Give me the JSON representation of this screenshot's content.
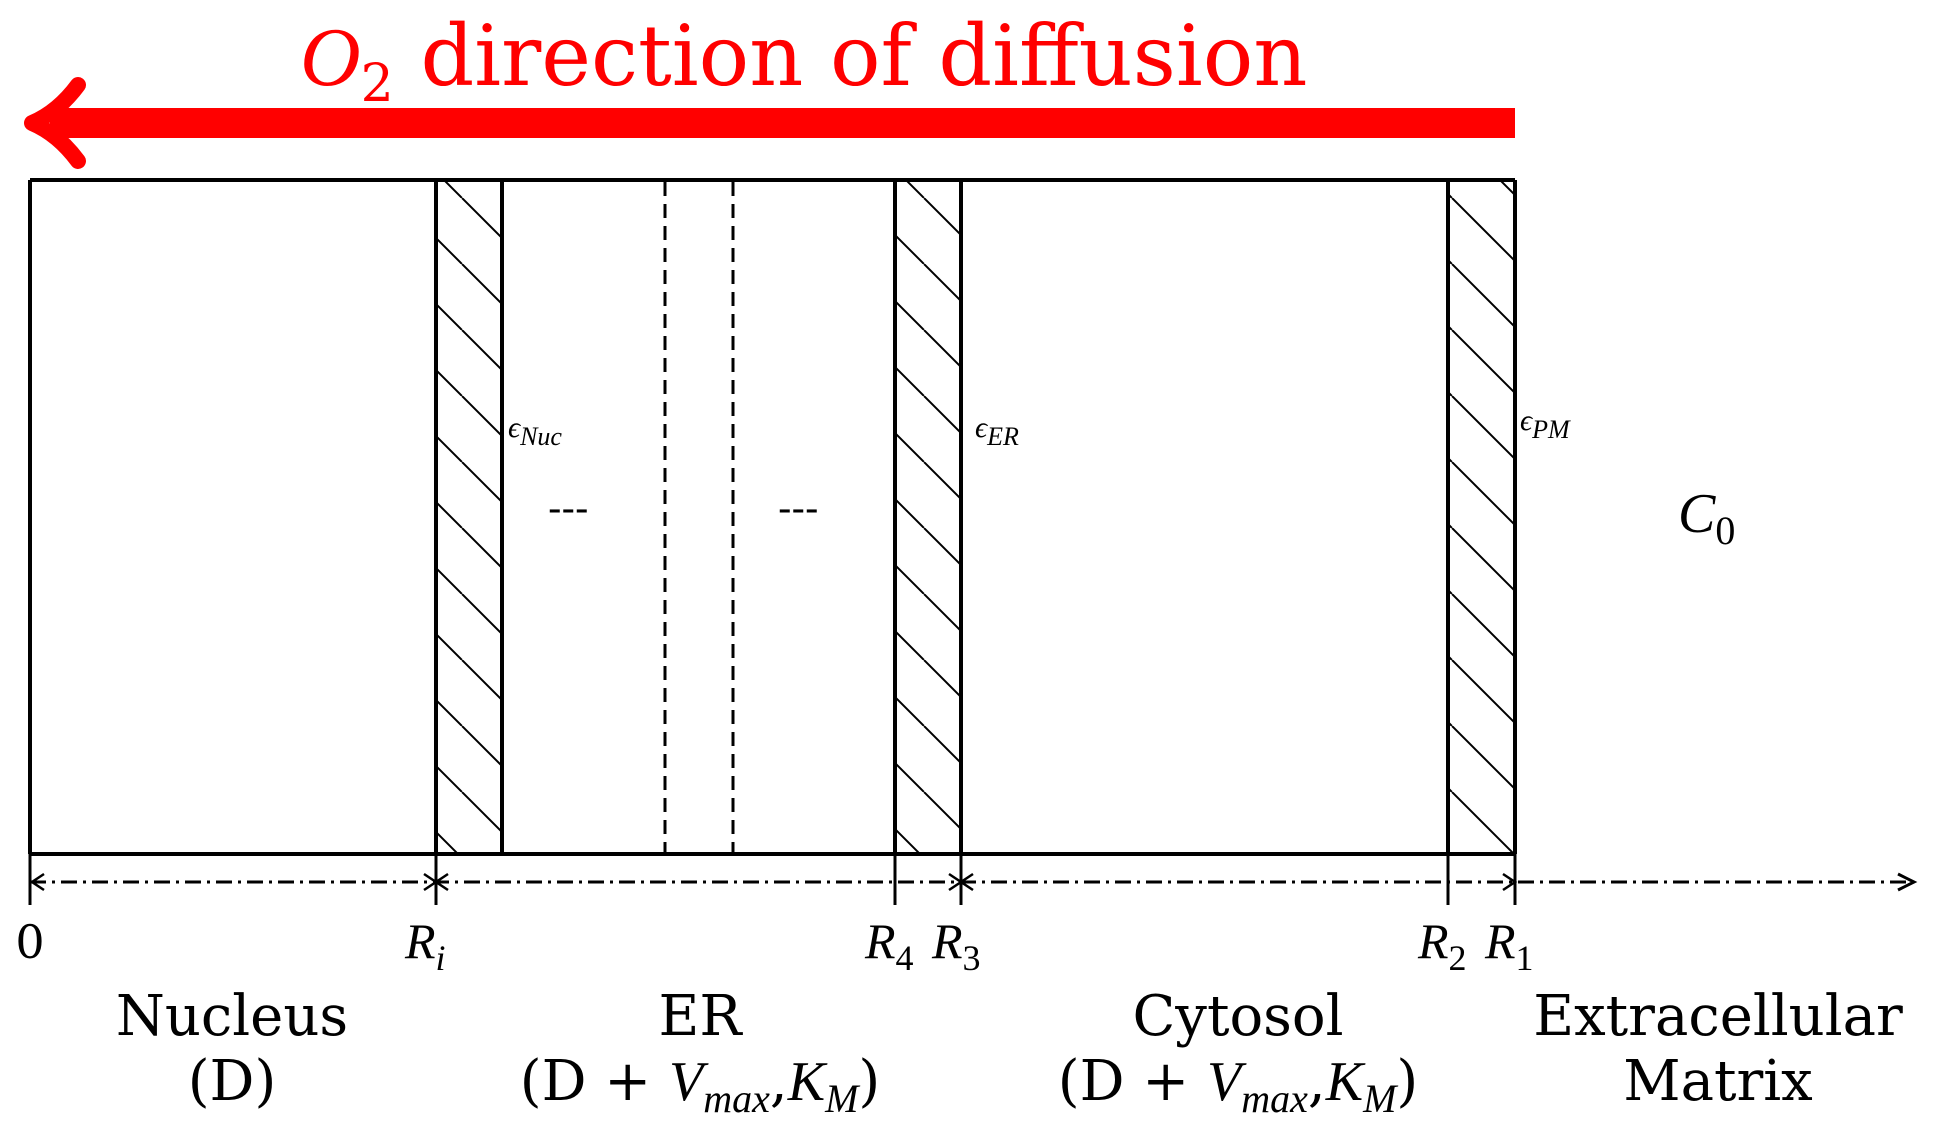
{
  "title": {
    "symbol": "O",
    "subscript": "2",
    "text": " direction of diffusion",
    "color": "#ff0000"
  },
  "membranes": [
    {
      "symbol": "ϵ",
      "sub": "Nuc"
    },
    {
      "symbol": "ϵ",
      "sub": "ER"
    },
    {
      "symbol": "ϵ",
      "sub": "PM"
    }
  ],
  "ellipsis": [
    "---",
    "---"
  ],
  "outer_concentration": {
    "symbol": "C",
    "sub": "0"
  },
  "axis_ticks": [
    {
      "main": "0",
      "sub": ""
    },
    {
      "main": "R",
      "sub": "i"
    },
    {
      "main": "R",
      "sub": "4"
    },
    {
      "main": "R",
      "sub": "3"
    },
    {
      "main": "R",
      "sub": "2"
    },
    {
      "main": "R",
      "sub": "1"
    }
  ],
  "regions": [
    {
      "name": "Nucleus",
      "detail": "(D)"
    },
    {
      "name": "ER",
      "detail_pre": "(D + ",
      "vmax": "V",
      "vmax_sub": "max",
      "comma": ",",
      "km": "K",
      "km_sub": "M",
      "detail_post": ")"
    },
    {
      "name": "Cytosol",
      "detail_pre": "(D + ",
      "vmax": "V",
      "vmax_sub": "max",
      "comma": ",",
      "km": "K",
      "km_sub": "M",
      "detail_post": ")"
    },
    {
      "name": "Extracellular",
      "detail": "Matrix"
    }
  ]
}
